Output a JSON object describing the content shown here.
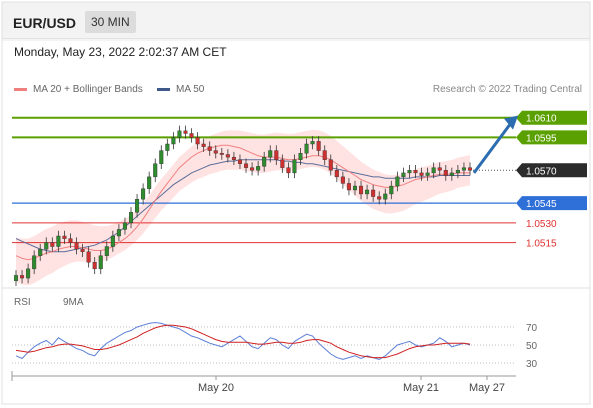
{
  "header": {
    "symbol": "EUR/USD",
    "timeframe": "30 MIN"
  },
  "timestamp": "Monday, May 23, 2022 2:02:37 AM CET",
  "legend": {
    "ma20_label": "MA 20 + Bollinger Bands",
    "ma50_label": "MA 50",
    "credit": "Research © 2022 Trading Central"
  },
  "rsi_legend": {
    "rsi_label": "RSI",
    "ma_label": "9MA"
  },
  "colors": {
    "resistance": "#5aa000",
    "support": "#2f6fd8",
    "target": "#e03030",
    "ma20": "#f08080",
    "ma50": "#5a6e9a",
    "bands": "#ffd8d8",
    "candle_up": "#2e8b2e",
    "candle_down": "#d03030",
    "rsi": "#5b7fd6",
    "rsi_ma": "#d02020",
    "arrow": "#2c6cb0"
  },
  "chart_data": {
    "type": "candlestick",
    "symbol": "EUR/USD",
    "timeframe": "30 MIN",
    "ylim": [
      1.0485,
      1.0625
    ],
    "x_ticks": [
      "May 20",
      "May 21",
      "May 27"
    ],
    "levels": [
      {
        "name": "resistance",
        "value": 1.061,
        "label": "1.0610"
      },
      {
        "name": "resistance",
        "value": 1.0595,
        "label": "1.0595"
      },
      {
        "name": "last",
        "value": 1.057,
        "label": "1.0570"
      },
      {
        "name": "support",
        "value": 1.0545,
        "label": "1.0545"
      },
      {
        "name": "target",
        "value": 1.053,
        "label": "1.0530"
      },
      {
        "name": "target",
        "value": 1.0515,
        "label": "1.0515"
      }
    ],
    "close": [
      1.049,
      1.0488,
      1.0495,
      1.0505,
      1.051,
      1.0515,
      1.0512,
      1.052,
      1.0518,
      1.0515,
      1.051,
      1.0508,
      1.05,
      1.0495,
      1.0505,
      1.0512,
      1.052,
      1.0525,
      1.053,
      1.0538,
      1.0548,
      1.0556,
      1.0565,
      1.0575,
      1.0585,
      1.059,
      1.0595,
      1.06,
      1.0598,
      1.0595,
      1.059,
      1.0588,
      1.0585,
      1.0583,
      1.0582,
      1.058,
      1.0578,
      1.0575,
      1.0572,
      1.057,
      1.0573,
      1.058,
      1.0585,
      1.0578,
      1.0572,
      1.0568,
      1.0578,
      1.0583,
      1.059,
      1.0592,
      1.0585,
      1.0578,
      1.057,
      1.0565,
      1.056,
      1.0555,
      1.0558,
      1.0552,
      1.0555,
      1.055,
      1.0548,
      1.0552,
      1.0558,
      1.0565,
      1.0568,
      1.057,
      1.0568,
      1.0566,
      1.0568,
      1.0572,
      1.057,
      1.0566,
      1.0568,
      1.057,
      1.0572,
      1.057
    ],
    "ma20": [
      1.0505,
      1.0503,
      1.0502,
      1.0503,
      1.0505,
      1.0507,
      1.0508,
      1.051,
      1.0511,
      1.0512,
      1.0512,
      1.0511,
      1.051,
      1.0509,
      1.0509,
      1.051,
      1.0512,
      1.0515,
      1.0518,
      1.0522,
      1.0527,
      1.0533,
      1.054,
      1.0547,
      1.0554,
      1.056,
      1.0566,
      1.0572,
      1.0576,
      1.058,
      1.0583,
      1.0585,
      1.0587,
      1.0588,
      1.0589,
      1.0589,
      1.0588,
      1.0587,
      1.0585,
      1.0583,
      1.0581,
      1.058,
      1.058,
      1.058,
      1.0579,
      1.0578,
      1.0578,
      1.0579,
      1.058,
      1.0581,
      1.0581,
      1.058,
      1.0578,
      1.0575,
      1.0572,
      1.0569,
      1.0566,
      1.0563,
      1.0561,
      1.0559,
      1.0558,
      1.0557,
      1.0557,
      1.0558,
      1.0559,
      1.0561,
      1.0563,
      1.0564,
      1.0565,
      1.0566,
      1.0567,
      1.0567,
      1.0567,
      1.0568,
      1.0568,
      1.0568
    ],
    "ma50": [
      1.0518,
      1.0516,
      1.0514,
      1.0512,
      1.051,
      1.0509,
      1.0508,
      1.0508,
      1.0508,
      1.0509,
      1.051,
      1.0511,
      1.0512,
      1.0513,
      1.0515,
      1.0517,
      1.052,
      1.0523,
      1.0527,
      1.0531,
      1.0535,
      1.0539,
      1.0543,
      1.0547,
      1.0551,
      1.0555,
      1.0559,
      1.0562,
      1.0565,
      1.0568,
      1.057,
      1.0572,
      1.0574,
      1.0575,
      1.0576,
      1.0577,
      1.0577,
      1.0578,
      1.0578,
      1.0578,
      1.0578,
      1.0578,
      1.0578,
      1.0578,
      1.0577,
      1.0577,
      1.0576,
      1.0576,
      1.0575,
      1.0575,
      1.0574,
      1.0573,
      1.0572,
      1.0571,
      1.057,
      1.0569,
      1.0568,
      1.0567,
      1.0566,
      1.0565,
      1.0565,
      1.0564,
      1.0564,
      1.0564,
      1.0564,
      1.0564,
      1.0565,
      1.0565,
      1.0565,
      1.0565,
      1.0566,
      1.0566,
      1.0566,
      1.0566,
      1.0566,
      1.0566
    ],
    "rsi": {
      "levels": [
        70,
        50,
        30
      ],
      "ylim": [
        20,
        80
      ],
      "rsi": [
        38,
        35,
        42,
        48,
        52,
        55,
        50,
        58,
        54,
        50,
        46,
        44,
        40,
        38,
        46,
        52,
        56,
        60,
        64,
        66,
        70,
        72,
        74,
        75,
        74,
        72,
        70,
        68,
        64,
        60,
        58,
        55,
        52,
        50,
        48,
        52,
        56,
        60,
        54,
        48,
        46,
        52,
        58,
        56,
        50,
        46,
        54,
        58,
        62,
        60,
        52,
        46,
        40,
        36,
        34,
        36,
        38,
        35,
        38,
        36,
        34,
        38,
        44,
        50,
        52,
        54,
        50,
        48,
        50,
        52,
        58,
        54,
        48,
        50,
        52,
        50
      ],
      "ma": [
        44,
        43,
        42,
        43,
        45,
        47,
        48,
        50,
        51,
        51,
        50,
        49,
        47,
        45,
        45,
        46,
        48,
        50,
        53,
        56,
        59,
        63,
        66,
        69,
        71,
        72,
        72,
        71,
        70,
        68,
        65,
        62,
        59,
        56,
        54,
        53,
        53,
        53,
        53,
        52,
        51,
        51,
        52,
        53,
        53,
        52,
        52,
        53,
        55,
        56,
        56,
        54,
        52,
        48,
        45,
        42,
        40,
        38,
        37,
        36,
        36,
        36,
        38,
        40,
        43,
        46,
        48,
        49,
        50,
        50,
        51,
        52,
        52,
        52,
        52,
        51
      ]
    }
  }
}
